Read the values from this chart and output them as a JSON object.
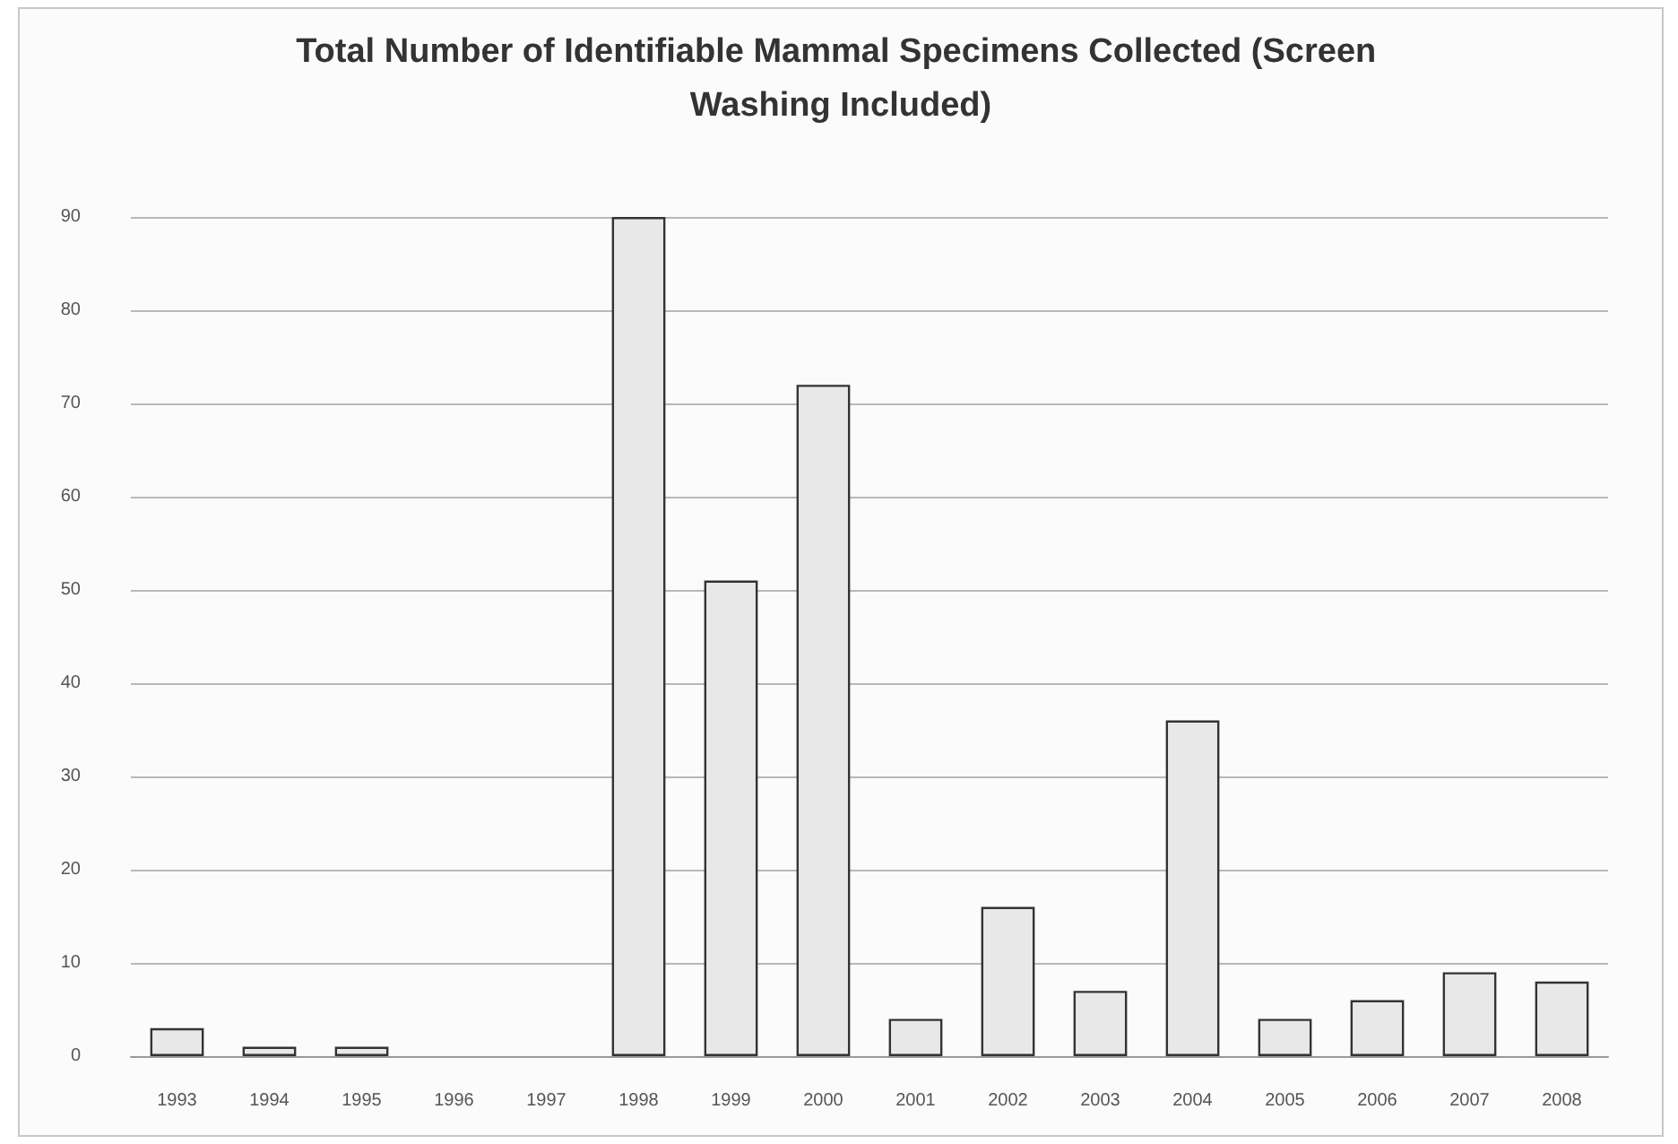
{
  "chart_data": {
    "type": "bar",
    "title": "Total Number of Identifiable Mammal Specimens Collected (Screen Washing Included)",
    "categories": [
      "1993",
      "1994",
      "1995",
      "1996",
      "1997",
      "1998",
      "1999",
      "2000",
      "2001",
      "2002",
      "2003",
      "2004",
      "2005",
      "2006",
      "2007",
      "2008"
    ],
    "values": [
      3,
      1,
      1,
      0,
      0,
      90,
      51,
      72,
      4,
      16,
      7,
      36,
      4,
      6,
      9,
      8
    ],
    "color": "#e8e8e8",
    "ylim": [
      0,
      90
    ],
    "yticks": [
      0,
      10,
      20,
      30,
      40,
      50,
      60,
      70,
      80,
      90
    ],
    "grid": "y"
  }
}
